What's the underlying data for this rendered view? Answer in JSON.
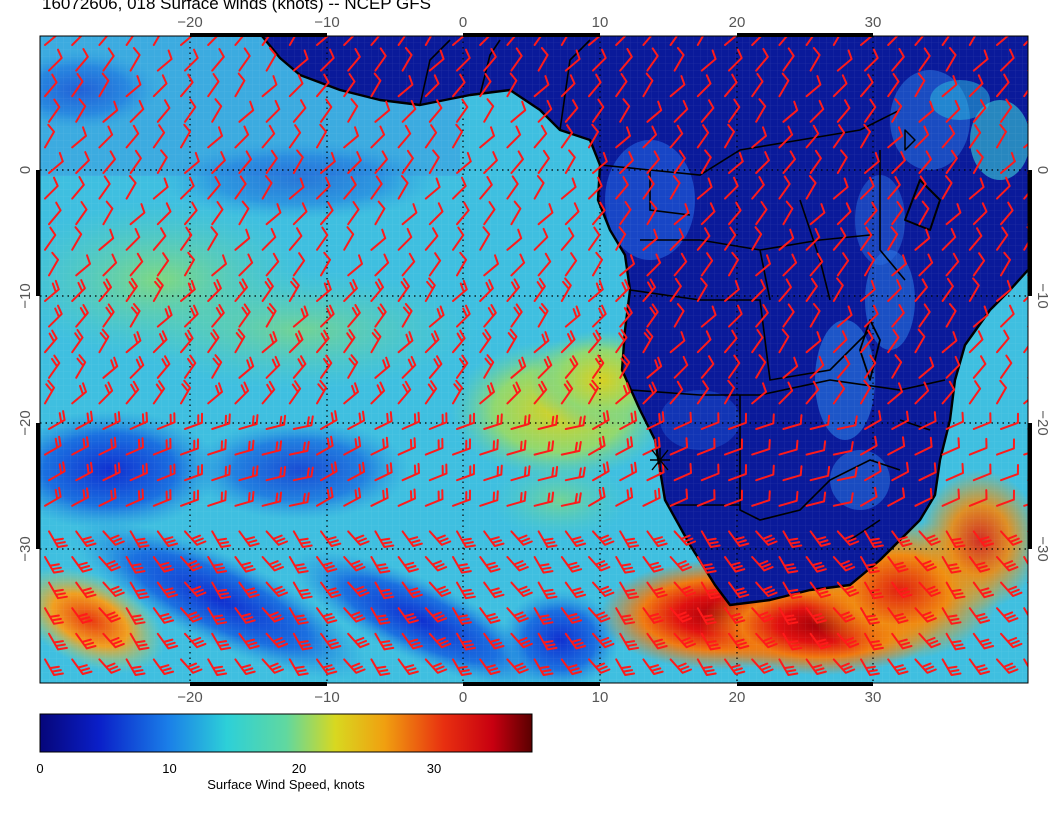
{
  "title": "16072606, 018 Surface winds (knots) -- NCEP GFS",
  "colorbar": {
    "label": "Surface Wind Speed, knots",
    "ticks": [
      "0",
      "10",
      "20",
      "30"
    ],
    "tick_values": [
      0,
      10,
      20,
      30
    ],
    "range": [
      0,
      38
    ]
  },
  "map": {
    "lon_range": [
      -30,
      40
    ],
    "lat_range": [
      -40,
      10
    ],
    "lon_ticks": [
      -20,
      -10,
      0,
      10,
      20,
      30
    ],
    "lat_ticks": [
      0,
      -10,
      -20,
      -30
    ],
    "lon_tick_labels": [
      "−20",
      "−10",
      "0",
      "10",
      "20",
      "30"
    ],
    "lat_tick_labels": [
      "0",
      "−10",
      "−20",
      "−30"
    ],
    "grid": true,
    "land_color": "#0a1a9a",
    "barb_color": "#ff1a1a",
    "coast_color": "#000000"
  }
}
